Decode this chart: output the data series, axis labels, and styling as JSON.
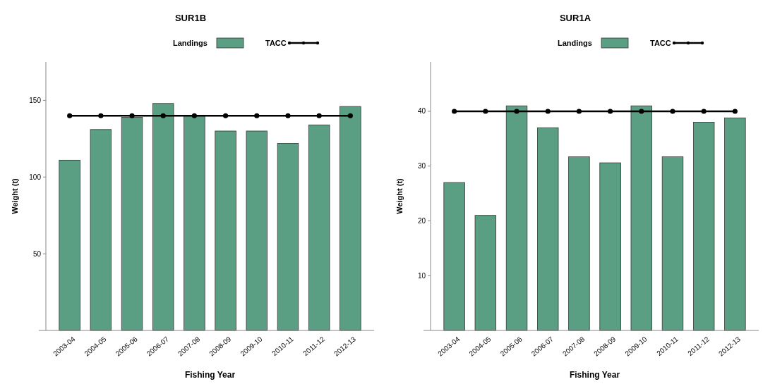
{
  "chart_data": [
    {
      "type": "bar",
      "title": "SUR1B",
      "xlabel": "Fishing Year",
      "ylabel": "Weight (t)",
      "categories": [
        "2003-04",
        "2004-05",
        "2005-06",
        "2006-07",
        "2007-08",
        "2008-09",
        "2009-10",
        "2010-11",
        "2011-12",
        "2012-13"
      ],
      "series": [
        {
          "name": "Landings",
          "color": "#5a9f83",
          "values": [
            111,
            131,
            139,
            148,
            140,
            130,
            130,
            122,
            134,
            146
          ]
        },
        {
          "name": "TACC",
          "type": "line",
          "color": "#000000",
          "marker": "circle",
          "values": [
            140,
            140,
            140,
            140,
            140,
            140,
            140,
            140,
            140,
            140
          ]
        }
      ],
      "ylim": [
        0,
        175
      ],
      "yticks": [
        50,
        100,
        150
      ],
      "legend": "top",
      "grid": false
    },
    {
      "type": "bar",
      "title": "SUR1A",
      "xlabel": "Fishing Year",
      "ylabel": "Weight (t)",
      "categories": [
        "2003-04",
        "2004-05",
        "2005-06",
        "2006-07",
        "2007-08",
        "2008-09",
        "2009-10",
        "2010-11",
        "2011-12",
        "2012-13"
      ],
      "series": [
        {
          "name": "Landings",
          "color": "#5a9f83",
          "values": [
            27,
            21,
            41,
            37,
            31.7,
            30.6,
            41,
            31.7,
            38,
            38.8
          ]
        },
        {
          "name": "TACC",
          "type": "line",
          "color": "#000000",
          "marker": "circle",
          "values": [
            40,
            40,
            40,
            40,
            40,
            40,
            40,
            40,
            40,
            40
          ]
        }
      ],
      "ylim": [
        0,
        49
      ],
      "yticks": [
        10,
        20,
        30,
        40
      ],
      "legend": "top",
      "grid": false
    }
  ]
}
